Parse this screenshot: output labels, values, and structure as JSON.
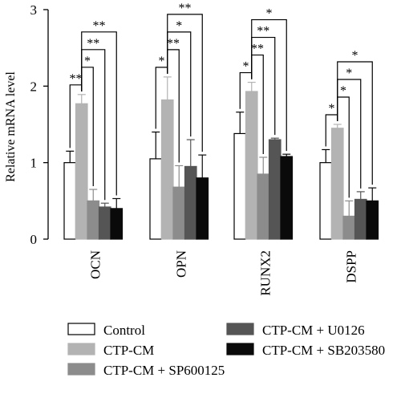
{
  "chart_data": {
    "type": "bar",
    "ylabel": "Relative mRNA level",
    "xlabel": "",
    "ylim": [
      0,
      3
    ],
    "yticks": [
      0,
      1,
      2,
      3
    ],
    "categories": [
      "OCN",
      "OPN",
      "RUNX2",
      "DSPP"
    ],
    "series": [
      {
        "name": "Control",
        "color": "#ffffff",
        "values": [
          1.0,
          1.05,
          1.38,
          1.0
        ],
        "errors": [
          0.15,
          0.35,
          0.28,
          0.17
        ]
      },
      {
        "name": "CTP-CM",
        "color": "#b3b3b3",
        "values": [
          1.77,
          1.82,
          1.93,
          1.45
        ],
        "errors": [
          0.12,
          0.3,
          0.12,
          0.05
        ]
      },
      {
        "name": "CTP-CM + SP600125",
        "color": "#8c8c8c",
        "values": [
          0.5,
          0.68,
          0.85,
          0.3
        ],
        "errors": [
          0.15,
          0.28,
          0.22,
          0.2
        ]
      },
      {
        "name": "CTP-CM + U0126",
        "color": "#555555",
        "values": [
          0.42,
          0.95,
          1.3,
          0.52
        ],
        "errors": [
          0.05,
          0.35,
          0.02,
          0.1
        ]
      },
      {
        "name": "CTP-CM + SB203580",
        "color": "#0a0a0a",
        "values": [
          0.4,
          0.8,
          1.08,
          0.5
        ],
        "errors": [
          0.13,
          0.3,
          0.03,
          0.17
        ]
      }
    ],
    "significance": [
      {
        "category": "OCN",
        "brackets": [
          {
            "from": 0,
            "to": 1,
            "label": "**"
          },
          {
            "from": 1,
            "to": 2,
            "label": "*"
          },
          {
            "from": 1,
            "to": 3,
            "label": "**"
          },
          {
            "from": 1,
            "to": 4,
            "label": "**"
          }
        ]
      },
      {
        "category": "OPN",
        "brackets": [
          {
            "from": 0,
            "to": 1,
            "label": "*"
          },
          {
            "from": 1,
            "to": 2,
            "label": "**"
          },
          {
            "from": 1,
            "to": 3,
            "label": "*"
          },
          {
            "from": 1,
            "to": 4,
            "label": "**"
          }
        ]
      },
      {
        "category": "RUNX2",
        "brackets": [
          {
            "from": 0,
            "to": 1,
            "label": "*"
          },
          {
            "from": 1,
            "to": 2,
            "label": "**"
          },
          {
            "from": 1,
            "to": 3,
            "label": "**"
          },
          {
            "from": 1,
            "to": 4,
            "label": "*"
          }
        ]
      },
      {
        "category": "DSPP",
        "brackets": [
          {
            "from": 0,
            "to": 1,
            "label": "*"
          },
          {
            "from": 1,
            "to": 2,
            "label": "*"
          },
          {
            "from": 1,
            "to": 3,
            "label": "*"
          },
          {
            "from": 1,
            "to": 4,
            "label": "*"
          }
        ]
      }
    ],
    "legend_position": "bottom"
  }
}
